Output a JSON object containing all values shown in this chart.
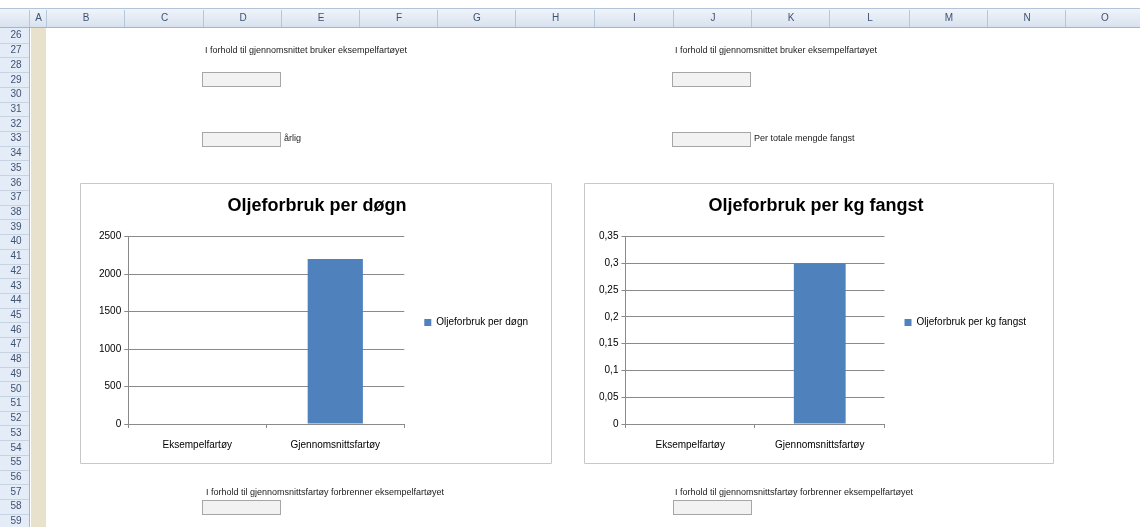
{
  "chart_data": [
    {
      "type": "heatmap",
      "categories": [
        "A",
        "B",
        "C",
        "D",
        "E",
        "F",
        "G",
        "H",
        "I",
        "J",
        "K",
        "L",
        "M",
        "N",
        "O"
      ],
      "y_categories": [
        "26",
        "27",
        "28",
        "29",
        "30",
        "31",
        "32",
        "33",
        "34",
        "35",
        "36",
        "37",
        "38",
        "39",
        "40",
        "41",
        "42",
        "43",
        "44",
        "45",
        "46",
        "47",
        "48",
        "49",
        "50",
        "51",
        "52",
        "53",
        "54",
        "55",
        "56",
        "57",
        "58",
        "59"
      ],
      "cells": [
        [
          null,
          null,
          null,
          null,
          null,
          null,
          null,
          null,
          null,
          null,
          null,
          null,
          null,
          null,
          null
        ],
        [
          null,
          null,
          null,
          null,
          null,
          null,
          null,
          null,
          null,
          null,
          null,
          null,
          null,
          null,
          null
        ],
        [
          null,
          null,
          null,
          null,
          null,
          null,
          null,
          null,
          null,
          null,
          null,
          null,
          null,
          null,
          null
        ],
        [
          null,
          null,
          null,
          null,
          null,
          null,
          null,
          null,
          null,
          null,
          null,
          null,
          null,
          null,
          null
        ],
        [
          null,
          null,
          null,
          null,
          null,
          null,
          null,
          null,
          null,
          null,
          null,
          null,
          null,
          null,
          null
        ],
        [
          null,
          null,
          null,
          null,
          null,
          null,
          null,
          null,
          null,
          null,
          null,
          null,
          null,
          null,
          null
        ],
        [
          null,
          null,
          null,
          null,
          null,
          null,
          null,
          null,
          null,
          null,
          null,
          null,
          null,
          null,
          null
        ],
        [
          null,
          null,
          null,
          null,
          null,
          null,
          null,
          null,
          null,
          null,
          null,
          null,
          null,
          null,
          null
        ],
        [
          null,
          null,
          null,
          null,
          null,
          null,
          null,
          null,
          null,
          null,
          null,
          null,
          null,
          null,
          null
        ],
        [
          null,
          null,
          null,
          null,
          null,
          null,
          null,
          null,
          null,
          null,
          null,
          null,
          null,
          null,
          null
        ],
        [
          null,
          null,
          null,
          null,
          null,
          null,
          null,
          null,
          null,
          null,
          null,
          null,
          null,
          null,
          null
        ],
        [
          null,
          null,
          null,
          null,
          null,
          null,
          null,
          null,
          null,
          null,
          null,
          null,
          null,
          null,
          null
        ],
        [
          null,
          null,
          null,
          null,
          null,
          null,
          null,
          null,
          null,
          null,
          null,
          null,
          null,
          null,
          null
        ],
        [
          null,
          null,
          null,
          null,
          null,
          null,
          null,
          null,
          null,
          null,
          null,
          null,
          null,
          null,
          null
        ],
        [
          null,
          null,
          null,
          null,
          null,
          null,
          null,
          null,
          null,
          null,
          null,
          null,
          null,
          null,
          null
        ],
        [
          null,
          null,
          null,
          null,
          null,
          null,
          null,
          null,
          null,
          null,
          null,
          null,
          null,
          null,
          null
        ],
        [
          null,
          null,
          null,
          null,
          null,
          null,
          null,
          null,
          null,
          null,
          null,
          null,
          null,
          null,
          null
        ],
        [
          null,
          null,
          null,
          null,
          null,
          null,
          null,
          null,
          null,
          null,
          null,
          null,
          null,
          null,
          null
        ],
        [
          null,
          null,
          null,
          null,
          null,
          null,
          null,
          null,
          null,
          null,
          null,
          null,
          null,
          null,
          null
        ],
        [
          null,
          null,
          null,
          null,
          null,
          null,
          null,
          null,
          null,
          null,
          null,
          null,
          null,
          null,
          null
        ],
        [
          null,
          null,
          null,
          null,
          null,
          null,
          null,
          null,
          null,
          null,
          null,
          null,
          null,
          null,
          null
        ],
        [
          null,
          null,
          null,
          null,
          null,
          null,
          null,
          null,
          null,
          null,
          null,
          null,
          null,
          null,
          null
        ],
        [
          null,
          null,
          null,
          null,
          null,
          null,
          null,
          null,
          null,
          null,
          null,
          null,
          null,
          null,
          null
        ],
        [
          null,
          null,
          null,
          null,
          null,
          null,
          null,
          null,
          null,
          null,
          null,
          null,
          null,
          null,
          null
        ],
        [
          null,
          null,
          null,
          null,
          null,
          null,
          null,
          null,
          null,
          null,
          null,
          null,
          null,
          null,
          null
        ],
        [
          null,
          null,
          null,
          null,
          null,
          null,
          null,
          null,
          null,
          null,
          null,
          null,
          null,
          null,
          null
        ],
        [
          null,
          null,
          null,
          null,
          null,
          null,
          null,
          null,
          null,
          null,
          null,
          null,
          null,
          null,
          null
        ],
        [
          null,
          null,
          null,
          null,
          null,
          null,
          null,
          null,
          null,
          null,
          null,
          null,
          null,
          null,
          null
        ],
        [
          null,
          null,
          null,
          null,
          null,
          null,
          null,
          null,
          null,
          null,
          null,
          null,
          null,
          null,
          null
        ],
        [
          null,
          null,
          null,
          null,
          null,
          null,
          null,
          null,
          null,
          null,
          null,
          null,
          null,
          null,
          null
        ],
        [
          null,
          null,
          null,
          null,
          null,
          null,
          null,
          null,
          null,
          null,
          null,
          null,
          null,
          null,
          null
        ],
        [
          null,
          null,
          null,
          null,
          null,
          null,
          null,
          null,
          null,
          null,
          null,
          null,
          null,
          null,
          null
        ],
        [
          null,
          null,
          null,
          null,
          null,
          null,
          null,
          null,
          null,
          null,
          null,
          null,
          null,
          null,
          null
        ],
        [
          null,
          null,
          null,
          null,
          null,
          null,
          null,
          null,
          null,
          null,
          null,
          null,
          null,
          null,
          null
        ]
      ]
    },
    {
      "type": "bar",
      "title": "Oljeforbruk per døgn",
      "categories": [
        "Eksempelfartøy",
        "Gjennomsnittsfartøy"
      ],
      "series": [
        {
          "name": "Oljeforbruk per døgn",
          "color": "#4f81bd",
          "values": [
            null,
            2200
          ]
        }
      ],
      "ylim": [
        0,
        2500
      ],
      "yticks": [
        0,
        500,
        1000,
        1500,
        2000,
        2500
      ],
      "grid": "y",
      "legend": "right",
      "annotations": [
        "I forhold til gjennomsnittet bruker eksempelfartøyet",
        "årlig",
        "I forhold til gjennomsnittsfartøy forbrenner eksempelfartøyet"
      ]
    },
    {
      "type": "bar",
      "title": "Oljeforbruk per kg fangst",
      "categories": [
        "Eksempelfartøy",
        "Gjennomsnittsfartøy"
      ],
      "series": [
        {
          "name": "Oljeforbruk per kg fangst",
          "color": "#4f81bd",
          "values": [
            null,
            0.3
          ]
        }
      ],
      "ylim": [
        0,
        0.35
      ],
      "yticks": [
        0,
        {
          "value": 0.05,
          "label": "0,05"
        },
        {
          "value": 0.1,
          "label": "0,1"
        },
        {
          "value": 0.15,
          "label": "0,15"
        },
        {
          "value": 0.2,
          "label": "0,2"
        },
        {
          "value": 0.25,
          "label": "0,25"
        },
        {
          "value": 0.3,
          "label": "0,3"
        },
        {
          "value": 0.35,
          "label": "0,35"
        }
      ],
      "grid": "y",
      "legend": "right",
      "annotations": [
        "I forhold til gjennomsnittet bruker eksempelfartøyet",
        "Per totale mengde fangst",
        "I forhold til gjennomsnittsfartøy forbrenner eksempelfartøyet"
      ]
    }
  ]
}
